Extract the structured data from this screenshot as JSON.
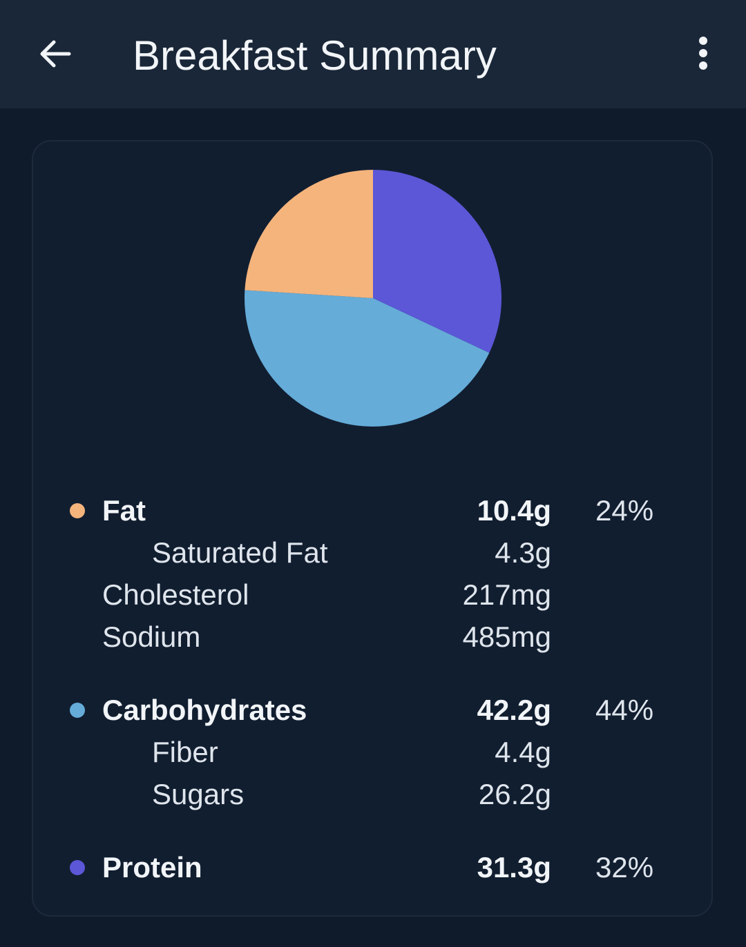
{
  "header": {
    "back_icon": "arrow-left-icon",
    "title": "Breakfast Summary",
    "menu_icon": "more-vert-icon"
  },
  "colors": {
    "fat": "#f5b47c",
    "carbohydrates": "#65acd9",
    "protein": "#5b57d7"
  },
  "chart_data": {
    "type": "pie",
    "slices": [
      {
        "label": "Protein",
        "value": 32,
        "color": "#5b57d7"
      },
      {
        "label": "Carbohydrates",
        "value": 44,
        "color": "#65acd9"
      },
      {
        "label": "Fat",
        "value": 24,
        "color": "#f5b47c"
      }
    ]
  },
  "nutrients": {
    "fat": {
      "label": "Fat",
      "amount": "10.4g",
      "percent": "24%"
    },
    "saturated_fat": {
      "label": "Saturated Fat",
      "amount": "4.3g"
    },
    "cholesterol": {
      "label": "Cholesterol",
      "amount": "217mg"
    },
    "sodium": {
      "label": "Sodium",
      "amount": "485mg"
    },
    "carbohydrates": {
      "label": "Carbohydrates",
      "amount": "42.2g",
      "percent": "44%"
    },
    "fiber": {
      "label": "Fiber",
      "amount": "4.4g"
    },
    "sugars": {
      "label": "Sugars",
      "amount": "26.2g"
    },
    "protein": {
      "label": "Protein",
      "amount": "31.3g",
      "percent": "32%"
    }
  }
}
